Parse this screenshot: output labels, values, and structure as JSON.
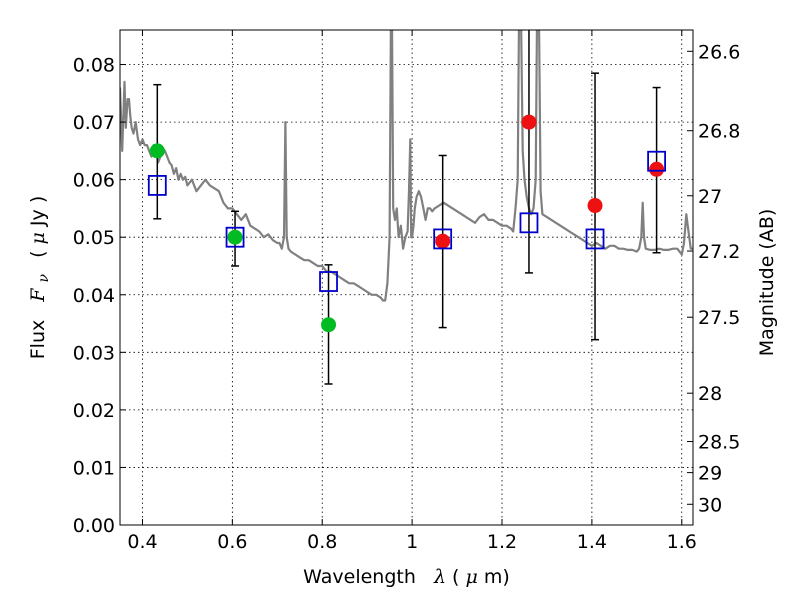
{
  "chart_data": {
    "type": "scatter",
    "xlabel": "Wavelength",
    "xlabel_symbol": "λ",
    "xlabel_unit_open": " (",
    "xlabel_unit_mu": "μ",
    "xlabel_unit_rest": "m)",
    "ylabel": "Flux",
    "ylabel_symbol": "F",
    "ylabel_subscript": "ν",
    "ylabel_unit_open": "( ",
    "ylabel_unit_mu": "μ",
    "ylabel_unit_rest": "Jy )",
    "y2label": "Magnitude (AB)",
    "xlim": [
      0.35,
      1.625
    ],
    "ylim": [
      0.0,
      0.086
    ],
    "grid": true,
    "x_ticks": [
      {
        "value": 0.4,
        "label": "0.4"
      },
      {
        "value": 0.6,
        "label": "0.6"
      },
      {
        "value": 0.8,
        "label": "0.8"
      },
      {
        "value": 1.0,
        "label": "1"
      },
      {
        "value": 1.2,
        "label": "1.2"
      },
      {
        "value": 1.4,
        "label": "1.4"
      },
      {
        "value": 1.6,
        "label": "1.6"
      }
    ],
    "y_ticks": [
      {
        "value": 0.0,
        "label": "0.00"
      },
      {
        "value": 0.01,
        "label": "0.01"
      },
      {
        "value": 0.02,
        "label": "0.02"
      },
      {
        "value": 0.03,
        "label": "0.03"
      },
      {
        "value": 0.04,
        "label": "0.04"
      },
      {
        "value": 0.05,
        "label": "0.05"
      },
      {
        "value": 0.06,
        "label": "0.06"
      },
      {
        "value": 0.07,
        "label": "0.07"
      },
      {
        "value": 0.08,
        "label": "0.08"
      }
    ],
    "y2_ticks": [
      {
        "flux": 0.0823,
        "label": "26.6"
      },
      {
        "flux": 0.0685,
        "label": "26.8"
      },
      {
        "flux": 0.0572,
        "label": "27"
      },
      {
        "flux": 0.0476,
        "label": "27.2"
      },
      {
        "flux": 0.0361,
        "label": "27.5"
      },
      {
        "flux": 0.0229,
        "label": "28"
      },
      {
        "flux": 0.0145,
        "label": "28.5"
      },
      {
        "flux": 0.0091,
        "label": "29"
      },
      {
        "flux": 0.0036,
        "label": "30"
      }
    ],
    "series": [
      {
        "name": "model spectrum",
        "kind": "line",
        "color": "#808080",
        "points": [
          [
            0.35,
            0.076
          ],
          [
            0.355,
            0.065
          ],
          [
            0.36,
            0.077
          ],
          [
            0.363,
            0.069
          ],
          [
            0.367,
            0.074
          ],
          [
            0.37,
            0.074
          ],
          [
            0.373,
            0.071
          ],
          [
            0.376,
            0.069
          ],
          [
            0.38,
            0.068
          ],
          [
            0.385,
            0.07
          ],
          [
            0.39,
            0.067
          ],
          [
            0.395,
            0.066
          ],
          [
            0.4,
            0.067
          ],
          [
            0.405,
            0.066
          ],
          [
            0.41,
            0.066
          ],
          [
            0.415,
            0.065
          ],
          [
            0.42,
            0.064
          ],
          [
            0.425,
            0.066
          ],
          [
            0.43,
            0.065
          ],
          [
            0.435,
            0.063
          ],
          [
            0.44,
            0.064
          ],
          [
            0.445,
            0.0655
          ],
          [
            0.45,
            0.065
          ],
          [
            0.455,
            0.064
          ],
          [
            0.46,
            0.063
          ],
          [
            0.465,
            0.0625
          ],
          [
            0.47,
            0.061
          ],
          [
            0.475,
            0.062
          ],
          [
            0.48,
            0.06
          ],
          [
            0.485,
            0.061
          ],
          [
            0.49,
            0.06
          ],
          [
            0.495,
            0.0605
          ],
          [
            0.5,
            0.059
          ],
          [
            0.51,
            0.06
          ],
          [
            0.52,
            0.058
          ],
          [
            0.53,
            0.059
          ],
          [
            0.54,
            0.06
          ],
          [
            0.55,
            0.059
          ],
          [
            0.56,
            0.0585
          ],
          [
            0.57,
            0.058
          ],
          [
            0.58,
            0.056
          ],
          [
            0.59,
            0.055
          ],
          [
            0.6,
            0.055
          ],
          [
            0.61,
            0.054
          ],
          [
            0.62,
            0.053
          ],
          [
            0.63,
            0.054
          ],
          [
            0.64,
            0.052
          ],
          [
            0.65,
            0.0515
          ],
          [
            0.66,
            0.051
          ],
          [
            0.67,
            0.05
          ],
          [
            0.68,
            0.0505
          ],
          [
            0.69,
            0.0495
          ],
          [
            0.7,
            0.049
          ],
          [
            0.705,
            0.049
          ],
          [
            0.71,
            0.048
          ],
          [
            0.715,
            0.05
          ],
          [
            0.718,
            0.07
          ],
          [
            0.721,
            0.05
          ],
          [
            0.725,
            0.048
          ],
          [
            0.73,
            0.0475
          ],
          [
            0.74,
            0.047
          ],
          [
            0.75,
            0.0465
          ],
          [
            0.76,
            0.046
          ],
          [
            0.77,
            0.046
          ],
          [
            0.78,
            0.0455
          ],
          [
            0.79,
            0.045
          ],
          [
            0.8,
            0.045
          ],
          [
            0.81,
            0.044
          ],
          [
            0.82,
            0.044
          ],
          [
            0.83,
            0.0435
          ],
          [
            0.84,
            0.043
          ],
          [
            0.85,
            0.0425
          ],
          [
            0.86,
            0.042
          ],
          [
            0.87,
            0.042
          ],
          [
            0.88,
            0.0415
          ],
          [
            0.89,
            0.041
          ],
          [
            0.9,
            0.0405
          ],
          [
            0.91,
            0.04
          ],
          [
            0.92,
            0.04
          ],
          [
            0.93,
            0.0395
          ],
          [
            0.935,
            0.039
          ],
          [
            0.94,
            0.039
          ],
          [
            0.945,
            0.042
          ],
          [
            0.95,
            0.05
          ],
          [
            0.953,
            0.09
          ],
          [
            0.955,
            0.09
          ],
          [
            0.958,
            0.055
          ],
          [
            0.962,
            0.053
          ],
          [
            0.966,
            0.055
          ],
          [
            0.97,
            0.05
          ],
          [
            0.975,
            0.052
          ],
          [
            0.98,
            0.048
          ],
          [
            0.985,
            0.05
          ],
          [
            0.99,
            0.051
          ],
          [
            0.993,
            0.058
          ],
          [
            0.996,
            0.067
          ],
          [
            0.998,
            0.05
          ],
          [
            1.0,
            0.05
          ],
          [
            1.003,
            0.052
          ],
          [
            1.006,
            0.055
          ],
          [
            1.01,
            0.057
          ],
          [
            1.015,
            0.058
          ],
          [
            1.02,
            0.057
          ],
          [
            1.025,
            0.055
          ],
          [
            1.03,
            0.053
          ],
          [
            1.035,
            0.055
          ],
          [
            1.04,
            0.055
          ],
          [
            1.045,
            0.0545
          ],
          [
            1.05,
            0.055
          ],
          [
            1.06,
            0.0555
          ],
          [
            1.07,
            0.056
          ],
          [
            1.08,
            0.0555
          ],
          [
            1.09,
            0.055
          ],
          [
            1.1,
            0.0545
          ],
          [
            1.11,
            0.054
          ],
          [
            1.12,
            0.0535
          ],
          [
            1.13,
            0.053
          ],
          [
            1.14,
            0.0525
          ],
          [
            1.15,
            0.0535
          ],
          [
            1.16,
            0.054
          ],
          [
            1.17,
            0.053
          ],
          [
            1.18,
            0.053
          ],
          [
            1.19,
            0.0525
          ],
          [
            1.2,
            0.052
          ],
          [
            1.21,
            0.052
          ],
          [
            1.22,
            0.0515
          ],
          [
            1.225,
            0.051
          ],
          [
            1.23,
            0.055
          ],
          [
            1.235,
            0.06
          ],
          [
            1.238,
            0.09
          ],
          [
            1.242,
            0.09
          ],
          [
            1.246,
            0.065
          ],
          [
            1.25,
            0.06
          ],
          [
            1.255,
            0.057
          ],
          [
            1.26,
            0.055
          ],
          [
            1.265,
            0.054
          ],
          [
            1.27,
            0.055
          ],
          [
            1.275,
            0.06
          ],
          [
            1.278,
            0.09
          ],
          [
            1.282,
            0.09
          ],
          [
            1.286,
            0.058
          ],
          [
            1.29,
            0.054
          ],
          [
            1.3,
            0.0535
          ],
          [
            1.31,
            0.053
          ],
          [
            1.32,
            0.0525
          ],
          [
            1.33,
            0.052
          ],
          [
            1.34,
            0.0515
          ],
          [
            1.35,
            0.051
          ],
          [
            1.36,
            0.0505
          ],
          [
            1.37,
            0.05
          ],
          [
            1.38,
            0.0495
          ],
          [
            1.39,
            0.049
          ],
          [
            1.4,
            0.0485
          ],
          [
            1.41,
            0.049
          ],
          [
            1.42,
            0.0485
          ],
          [
            1.43,
            0.048
          ],
          [
            1.44,
            0.0485
          ],
          [
            1.45,
            0.0485
          ],
          [
            1.46,
            0.048
          ],
          [
            1.47,
            0.048
          ],
          [
            1.48,
            0.0478
          ],
          [
            1.49,
            0.0478
          ],
          [
            1.5,
            0.0475
          ],
          [
            1.505,
            0.048
          ],
          [
            1.51,
            0.05
          ],
          [
            1.513,
            0.056
          ],
          [
            1.516,
            0.05
          ],
          [
            1.52,
            0.048
          ],
          [
            1.53,
            0.0478
          ],
          [
            1.54,
            0.0478
          ],
          [
            1.55,
            0.048
          ],
          [
            1.56,
            0.0478
          ],
          [
            1.57,
            0.0478
          ],
          [
            1.58,
            0.048
          ],
          [
            1.59,
            0.048
          ],
          [
            1.6,
            0.047
          ],
          [
            1.605,
            0.049
          ],
          [
            1.61,
            0.054
          ],
          [
            1.615,
            0.051
          ],
          [
            1.62,
            0.048
          ],
          [
            1.625,
            0.048
          ]
        ]
      },
      {
        "name": "observed (green)",
        "kind": "points",
        "color": "#00bb22",
        "points": [
          [
            0.433,
            0.065
          ],
          [
            0.606,
            0.05
          ],
          [
            0.814,
            0.0348
          ]
        ]
      },
      {
        "name": "observed (red)",
        "kind": "points",
        "color": "#ee1111",
        "points": [
          [
            1.068,
            0.0493
          ],
          [
            1.26,
            0.07
          ],
          [
            1.407,
            0.0555
          ],
          [
            1.544,
            0.0618
          ]
        ]
      },
      {
        "name": "model photometry",
        "kind": "open-squares",
        "color": "#0000cc",
        "points": [
          [
            0.433,
            0.059
          ],
          [
            0.606,
            0.05
          ],
          [
            0.814,
            0.0423
          ],
          [
            1.068,
            0.0497
          ],
          [
            1.26,
            0.0525
          ],
          [
            1.407,
            0.0497
          ],
          [
            1.544,
            0.0632
          ]
        ]
      },
      {
        "name": "error bars",
        "kind": "errorbars",
        "color": "#000000",
        "bars": [
          {
            "x": 0.433,
            "low": 0.0532,
            "high": 0.0765
          },
          {
            "x": 0.606,
            "low": 0.045,
            "high": 0.0545
          },
          {
            "x": 0.814,
            "low": 0.0245,
            "high": 0.0452
          },
          {
            "x": 1.068,
            "low": 0.0343,
            "high": 0.0642
          },
          {
            "x": 1.26,
            "low": 0.0438,
            "high": 0.09
          },
          {
            "x": 1.407,
            "low": 0.0322,
            "high": 0.0785
          },
          {
            "x": 1.544,
            "low": 0.0473,
            "high": 0.076
          }
        ]
      }
    ]
  }
}
